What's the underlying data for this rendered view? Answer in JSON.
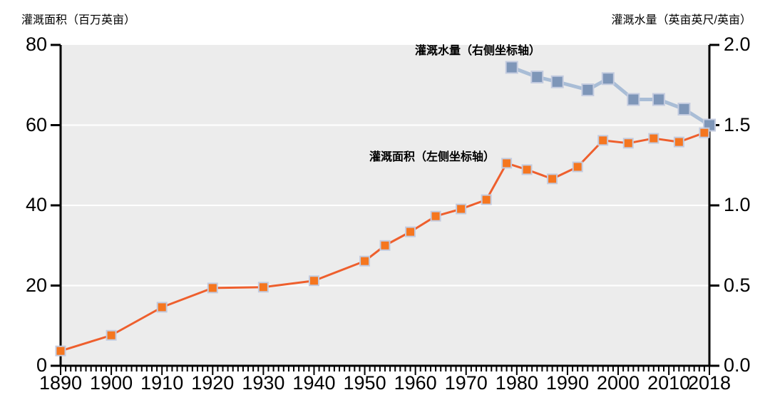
{
  "chart_data": {
    "type": "line",
    "title": "",
    "plot_bg": "#ececec",
    "grid_color": "#ffffff",
    "axis_color": "#000000",
    "text_color": "#000000",
    "left_axis": {
      "title": "灌溉面积（百万英亩）",
      "range": [
        0,
        80
      ],
      "ticks": [
        0,
        20,
        40,
        60,
        80
      ],
      "tick_labels": [
        "0",
        "20",
        "40",
        "60",
        "80"
      ]
    },
    "right_axis": {
      "title": "灌溉水量（英亩英尺/英亩）",
      "range": [
        0,
        2.0
      ],
      "ticks": [
        0,
        0.5,
        1.0,
        1.5,
        2.0
      ],
      "tick_labels": [
        "0.0",
        "0.5",
        "1.0",
        "1.5",
        "2.0"
      ]
    },
    "x_axis": {
      "range": [
        1890,
        2018
      ],
      "minor_tick_step_years": 1,
      "tick_years": [
        1890,
        1900,
        1910,
        1920,
        1930,
        1940,
        1950,
        1960,
        1970,
        1980,
        1990,
        2000,
        2010,
        2018
      ],
      "tick_labels": [
        "1890",
        "1900",
        "1910",
        "1920",
        "1930",
        "1940",
        "1950",
        "1960",
        "1970",
        "1980",
        "1990",
        "2000",
        "2010",
        "2018"
      ]
    },
    "legend_position": "inline-labels",
    "grid": "horizontal-only",
    "series": [
      {
        "name": "irrigated-area",
        "label": "灌溉面积（左侧坐标轴）",
        "axis": "left",
        "line_color": "#ee5f2d",
        "marker_color": "#f5761f",
        "marker_border": "#c3cbdf",
        "points": [
          [
            1890,
            3.7
          ],
          [
            1900,
            7.6
          ],
          [
            1910,
            14.6
          ],
          [
            1920,
            19.4
          ],
          [
            1930,
            19.6
          ],
          [
            1940,
            21.2
          ],
          [
            1950,
            26.1
          ],
          [
            1954,
            30.0
          ],
          [
            1959,
            33.4
          ],
          [
            1964,
            37.3
          ],
          [
            1969,
            39.1
          ],
          [
            1974,
            41.4
          ],
          [
            1978,
            50.5
          ],
          [
            1982,
            48.9
          ],
          [
            1987,
            46.6
          ],
          [
            1992,
            49.6
          ],
          [
            1997,
            56.2
          ],
          [
            2002,
            55.5
          ],
          [
            2007,
            56.7
          ],
          [
            2012,
            55.8
          ],
          [
            2017,
            58.1
          ]
        ]
      },
      {
        "name": "water-application-rate",
        "label": "灌溉水量（右侧坐标轴）",
        "axis": "right",
        "line_color": "#a9bdd6",
        "marker_color": "#7e96b8",
        "marker_border": "#c3cbdf",
        "points": [
          [
            1979,
            1.86
          ],
          [
            1984,
            1.8
          ],
          [
            1988,
            1.77
          ],
          [
            1994,
            1.72
          ],
          [
            1998,
            1.79
          ],
          [
            2003,
            1.66
          ],
          [
            2008,
            1.66
          ],
          [
            2013,
            1.6
          ],
          [
            2018,
            1.5
          ]
        ]
      }
    ]
  }
}
